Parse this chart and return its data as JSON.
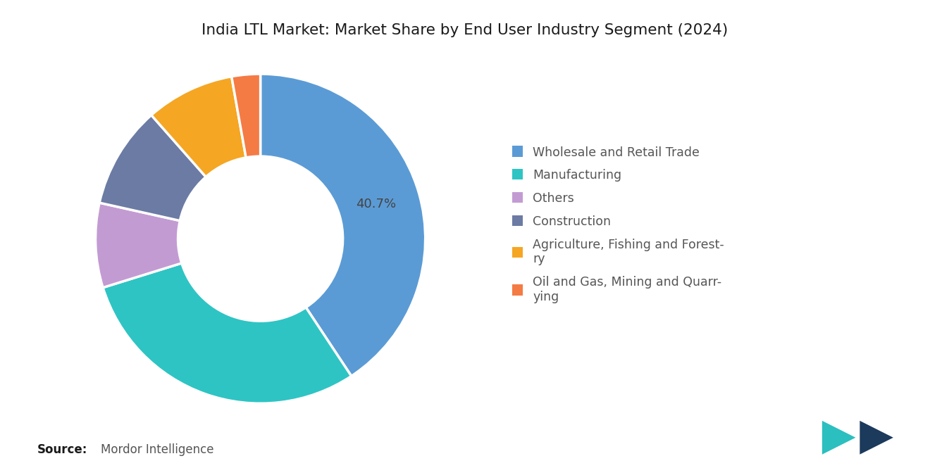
{
  "title": "India LTL Market: Market Share by End User Industry Segment (2024)",
  "segments": [
    {
      "label": "Wholesale and Retail Trade",
      "value": 40.7,
      "color": "#5B9BD5"
    },
    {
      "label": "Manufacturing",
      "value": 29.5,
      "color": "#2EC4C4"
    },
    {
      "label": "Others",
      "value": 8.3,
      "color": "#C39BD3"
    },
    {
      "label": "Construction",
      "value": 10.0,
      "color": "#6B7BA4"
    },
    {
      "label": "Agriculture, Fishing and Forestry",
      "value": 8.7,
      "color": "#F5A623"
    },
    {
      "label": "Oil and Gas, Mining and Quarrying",
      "value": 2.8,
      "color": "#F47B44"
    }
  ],
  "annotation_label": "40.7%",
  "source_bold": "Source:",
  "source_normal": "Mordor Intelligence",
  "background_color": "#FFFFFF",
  "title_fontsize": 15.5,
  "legend_fontsize": 12.5,
  "annotation_fontsize": 13,
  "source_fontsize": 12,
  "legend_labels": [
    "Wholesale and Retail Trade",
    "Manufacturing",
    "Others",
    "Construction",
    "Agriculture, Fishing and Forest-\nry",
    "Oil and Gas, Mining and Quarr-\nying"
  ]
}
